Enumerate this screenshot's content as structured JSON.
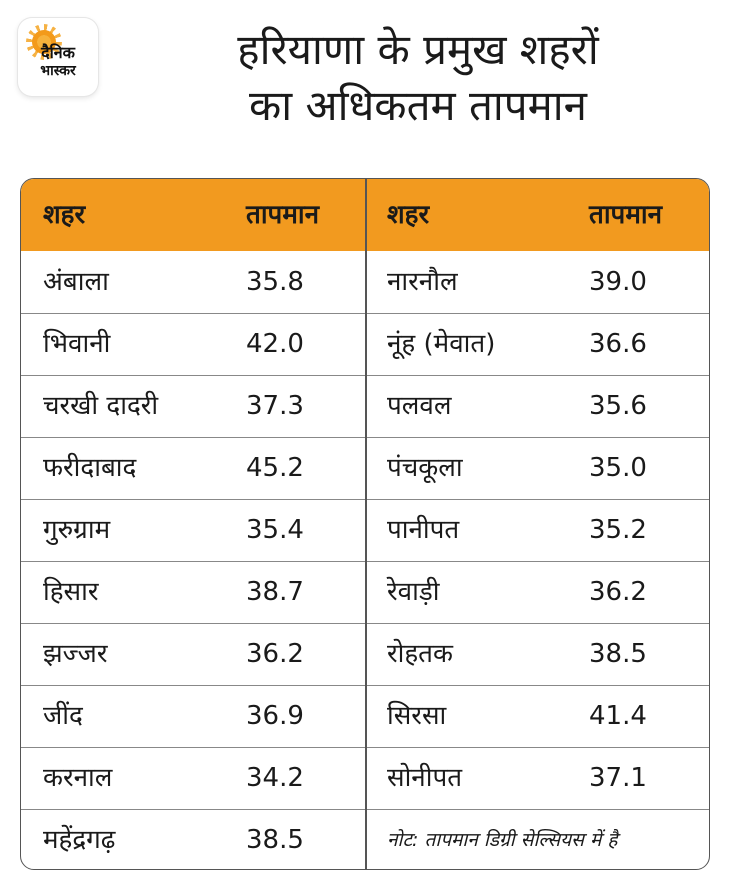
{
  "logo": {
    "line1": "दैनिक",
    "line2": "भास्कर"
  },
  "title": {
    "line1": "हरियाणा के प्रमुख शहरों",
    "line2": "का अधिकतम तापमान"
  },
  "table": {
    "headers": [
      "शहर",
      "तापमान",
      "शहर",
      "तापमान"
    ],
    "rows": [
      {
        "city_left": "अंबाला",
        "temp_left": "35.8",
        "city_right": "नारनौल",
        "temp_right": "39.0"
      },
      {
        "city_left": "भिवानी",
        "temp_left": "42.0",
        "city_right": "नूंह (मेवात)",
        "temp_right": "36.6"
      },
      {
        "city_left": "चरखी दादरी",
        "temp_left": "37.3",
        "city_right": "पलवल",
        "temp_right": "35.6"
      },
      {
        "city_left": "फरीदाबाद",
        "temp_left": "45.2",
        "city_right": "पंचकूला",
        "temp_right": "35.0"
      },
      {
        "city_left": "गुरुग्राम",
        "temp_left": "35.4",
        "city_right": "पानीपत",
        "temp_right": "35.2"
      },
      {
        "city_left": "हिसार",
        "temp_left": "38.7",
        "city_right": "रेवाड़ी",
        "temp_right": "36.2"
      },
      {
        "city_left": "झज्जर",
        "temp_left": "36.2",
        "city_right": "रोहतक",
        "temp_right": "38.5"
      },
      {
        "city_left": "जींद",
        "temp_left": "36.9",
        "city_right": "सिरसा",
        "temp_right": "41.4"
      },
      {
        "city_left": "करनाल",
        "temp_left": "34.2",
        "city_right": "सोनीपत",
        "temp_right": "37.1"
      },
      {
        "city_left": "महेंद्रगढ़",
        "temp_left": "38.5",
        "city_right": "",
        "temp_right": ""
      }
    ],
    "note": "नोट: तापमान डिग्री सेल्सियस में है"
  },
  "colors": {
    "header_bg": "#f29a1f",
    "border": "#555555"
  }
}
